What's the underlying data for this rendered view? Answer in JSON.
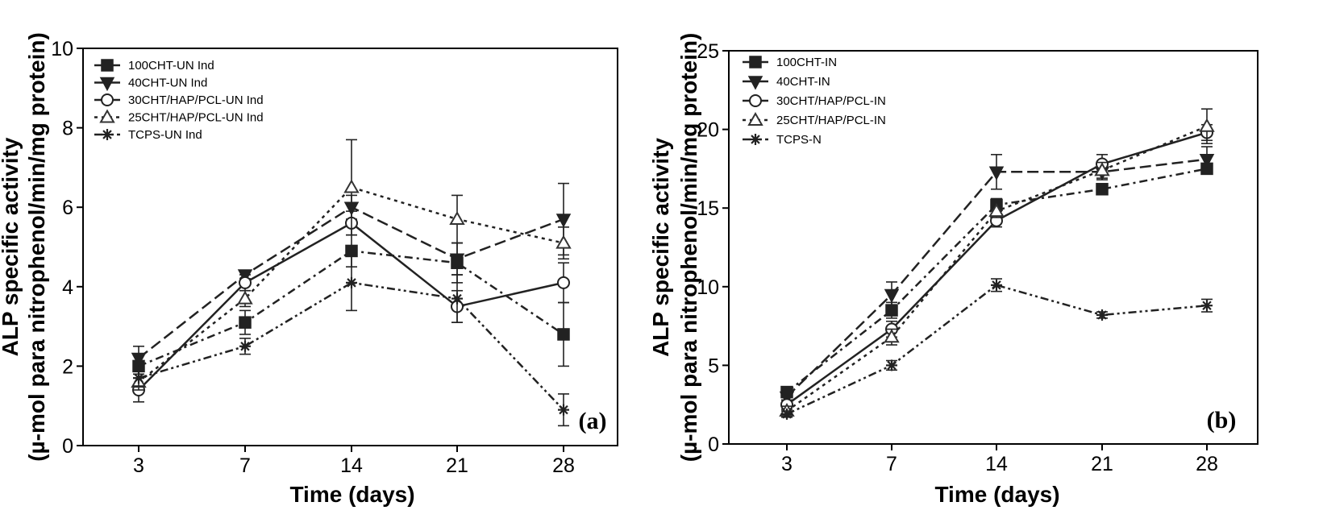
{
  "chart_data": [
    {
      "type": "line",
      "panel_label": "(a)",
      "xlabel": "Time (days)",
      "ylabel_line1": "ALP specific activity",
      "ylabel_line2": "(µ-mol para nitrophenol/min/mg protein)",
      "categories": [
        "3",
        "7",
        "14",
        "21",
        "28"
      ],
      "ylim": [
        0,
        10
      ],
      "yticks": [
        "0",
        "2",
        "4",
        "6",
        "8",
        "10"
      ],
      "legend_position": "top-left",
      "series": [
        {
          "name": "100CHT-UN Ind",
          "marker": "square",
          "dash": "dash-dot",
          "values": [
            2.0,
            3.1,
            4.9,
            4.6,
            2.8
          ],
          "errors": [
            0.3,
            0.3,
            0.4,
            0.5,
            0.8
          ]
        },
        {
          "name": "40CHT-UN Ind",
          "marker": "triangle-down",
          "dash": "dash",
          "values": [
            2.2,
            4.3,
            6.0,
            4.7,
            5.7
          ],
          "errors": [
            0.3,
            0.1,
            0.3,
            0.4,
            0.9
          ]
        },
        {
          "name": "30CHT/HAP/PCL-UN Ind",
          "marker": "circle-open",
          "dash": "solid",
          "values": [
            1.4,
            4.1,
            5.6,
            3.5,
            4.1
          ],
          "errors": [
            0.3,
            0.2,
            0.3,
            0.4,
            0.5
          ]
        },
        {
          "name": "25CHT/HAP/PCL-UN Ind",
          "marker": "triangle-up-open",
          "dash": "dot",
          "values": [
            1.6,
            3.7,
            6.5,
            5.7,
            5.1
          ],
          "errors": [
            0.2,
            0.2,
            1.2,
            0.6,
            0.4
          ]
        },
        {
          "name": "TCPS-UN Ind",
          "marker": "asterisk",
          "dash": "dash-dot-dot",
          "values": [
            1.7,
            2.5,
            4.1,
            3.7,
            0.9
          ],
          "errors": [
            0.2,
            0.2,
            0.7,
            0.6,
            0.4
          ]
        }
      ]
    },
    {
      "type": "line",
      "panel_label": "(b)",
      "xlabel": "Time (days)",
      "ylabel_line1": "ALP specific activity",
      "ylabel_line2": "(µ-mol para nitrophenol/min/mg protein)",
      "categories": [
        "3",
        "7",
        "14",
        "21",
        "28"
      ],
      "ylim": [
        0,
        25
      ],
      "yticks": [
        "0",
        "5",
        "10",
        "15",
        "20",
        "25"
      ],
      "legend_position": "top-left",
      "series": [
        {
          "name": "100CHT-IN",
          "marker": "square",
          "dash": "dash-dot",
          "values": [
            3.3,
            8.5,
            15.2,
            16.2,
            17.5
          ],
          "errors": [
            0.3,
            0.5,
            0.4,
            0.3,
            0.3
          ]
        },
        {
          "name": "40CHT-IN",
          "marker": "triangle-down",
          "dash": "dash",
          "values": [
            3.0,
            9.5,
            17.3,
            17.3,
            18.1
          ],
          "errors": [
            0.3,
            0.8,
            1.1,
            0.5,
            0.8
          ]
        },
        {
          "name": "30CHT/HAP/PCL-IN",
          "marker": "circle-open",
          "dash": "solid",
          "values": [
            2.5,
            7.3,
            14.2,
            17.8,
            19.8
          ],
          "errors": [
            0.3,
            0.5,
            0.4,
            0.6,
            0.5
          ]
        },
        {
          "name": "25CHT/HAP/PCL-IN",
          "marker": "triangle-up-open",
          "dash": "dot",
          "values": [
            2.1,
            6.8,
            14.8,
            17.4,
            20.2
          ],
          "errors": [
            0.3,
            0.5,
            0.4,
            0.5,
            1.1
          ]
        },
        {
          "name": "TCPS-N",
          "marker": "asterisk",
          "dash": "dash-dot-dot",
          "values": [
            1.9,
            5.0,
            10.1,
            8.2,
            8.8
          ],
          "errors": [
            0.2,
            0.3,
            0.4,
            0.2,
            0.4
          ]
        }
      ]
    }
  ]
}
